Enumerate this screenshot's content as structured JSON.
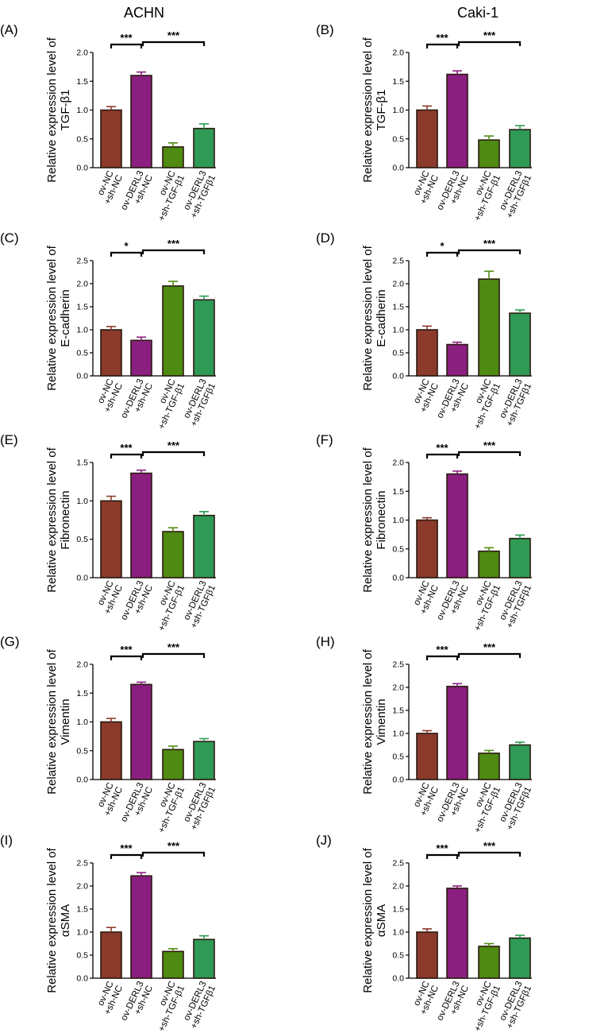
{
  "columns": [
    "ACHN",
    "Caki-1"
  ],
  "colors": {
    "ov_NC_sh_NC": "#8b3a2b",
    "ov_DERL3_sh_NC": "#8a1f7f",
    "ov_NC_sh_TGF": "#4f8a12",
    "ov_DERL3_sh_TGF": "#2e9a55",
    "edge": "#2a1a10"
  },
  "chart_data": [
    {
      "panel": "(A)",
      "type": "bar",
      "column": "ACHN",
      "ylabel": [
        "Relative expression level of",
        "TGF-β1"
      ],
      "ylim": [
        0,
        2.0
      ],
      "yticks": [
        0.0,
        0.5,
        1.0,
        1.5,
        2.0
      ],
      "categories": [
        [
          "ov-NC",
          "+sh-NC"
        ],
        [
          "ov-DERL3",
          "+sh-NC"
        ],
        [
          "ov-NC",
          "+sh-TGF-β1"
        ],
        [
          "ov-DERL3",
          "+sh-TGFβ1"
        ]
      ],
      "values": [
        1.0,
        1.6,
        0.36,
        0.68
      ],
      "errors": [
        0.06,
        0.06,
        0.07,
        0.08
      ],
      "significance": [
        {
          "from": 0,
          "to": 1,
          "label": "***"
        },
        {
          "from": 1,
          "to": 3,
          "label": "***"
        }
      ]
    },
    {
      "panel": "(B)",
      "type": "bar",
      "column": "Caki-1",
      "ylabel": [
        "Relative expression level of",
        "TGF-β1"
      ],
      "ylim": [
        0,
        2.0
      ],
      "yticks": [
        0.0,
        0.5,
        1.0,
        1.5,
        2.0
      ],
      "categories": [
        [
          "ov-NC",
          "+sh-NC"
        ],
        [
          "ov-DERL3",
          "+sh-NC"
        ],
        [
          "ov-NC",
          "+sh-TGF-β1"
        ],
        [
          "ov-DERL3",
          "+sh-TGFβ1"
        ]
      ],
      "values": [
        1.0,
        1.62,
        0.48,
        0.66
      ],
      "errors": [
        0.07,
        0.06,
        0.07,
        0.07
      ],
      "significance": [
        {
          "from": 0,
          "to": 1,
          "label": "***"
        },
        {
          "from": 1,
          "to": 3,
          "label": "***"
        }
      ]
    },
    {
      "panel": "(C)",
      "type": "bar",
      "column": "ACHN",
      "ylabel": [
        "Relative expression level of",
        "E-cadherin"
      ],
      "ylim": [
        0,
        2.5
      ],
      "yticks": [
        0.0,
        0.5,
        1.0,
        1.5,
        2.0,
        2.5
      ],
      "categories": [
        [
          "ov-NC",
          "+sh-NC"
        ],
        [
          "ov-DERL3",
          "+sh-NC"
        ],
        [
          "ov-NC",
          "+sh-TGF-β1"
        ],
        [
          "ov-DERL3",
          "+sh-TGFβ1"
        ]
      ],
      "values": [
        1.0,
        0.77,
        1.95,
        1.65
      ],
      "errors": [
        0.07,
        0.07,
        0.1,
        0.08
      ],
      "significance": [
        {
          "from": 0,
          "to": 1,
          "label": "*"
        },
        {
          "from": 1,
          "to": 3,
          "label": "***"
        }
      ]
    },
    {
      "panel": "(D)",
      "type": "bar",
      "column": "Caki-1",
      "ylabel": [
        "Relative expression level of",
        "E-cadherin"
      ],
      "ylim": [
        0,
        2.5
      ],
      "yticks": [
        0.0,
        0.5,
        1.0,
        1.5,
        2.0,
        2.5
      ],
      "categories": [
        [
          "ov-NC",
          "+sh-NC"
        ],
        [
          "ov-DERL3",
          "+sh-NC"
        ],
        [
          "ov-NC",
          "+sh-TGF-β1"
        ],
        [
          "ov-DERL3",
          "+sh-TGFβ1"
        ]
      ],
      "values": [
        1.0,
        0.68,
        2.1,
        1.36
      ],
      "errors": [
        0.08,
        0.05,
        0.17,
        0.07
      ],
      "significance": [
        {
          "from": 0,
          "to": 1,
          "label": "*"
        },
        {
          "from": 1,
          "to": 3,
          "label": "***"
        }
      ]
    },
    {
      "panel": "(E)",
      "type": "bar",
      "column": "ACHN",
      "ylabel": [
        "Relative expression level of",
        "Fibronectin"
      ],
      "ylim": [
        0,
        1.5
      ],
      "yticks": [
        0.0,
        0.5,
        1.0,
        1.5
      ],
      "categories": [
        [
          "ov-NC",
          "+sh-NC"
        ],
        [
          "ov-DERL3",
          "+sh-NC"
        ],
        [
          "ov-NC",
          "+sh-TGF-β1"
        ],
        [
          "ov-DERL3",
          "+sh-TGFβ1"
        ]
      ],
      "values": [
        1.0,
        1.36,
        0.6,
        0.81
      ],
      "errors": [
        0.06,
        0.04,
        0.05,
        0.05
      ],
      "significance": [
        {
          "from": 0,
          "to": 1,
          "label": "***"
        },
        {
          "from": 1,
          "to": 3,
          "label": "***"
        }
      ]
    },
    {
      "panel": "(F)",
      "type": "bar",
      "column": "Caki-1",
      "ylabel": [
        "Relative expression level of",
        "Fibronectin"
      ],
      "ylim": [
        0,
        2.0
      ],
      "yticks": [
        0.0,
        0.5,
        1.0,
        1.5,
        2.0
      ],
      "categories": [
        [
          "ov-NC",
          "+sh-NC"
        ],
        [
          "ov-DERL3",
          "+sh-NC"
        ],
        [
          "ov-NC",
          "+sh-TGF-β1"
        ],
        [
          "ov-DERL3",
          "+sh-TGFβ1"
        ]
      ],
      "values": [
        1.0,
        1.8,
        0.46,
        0.68
      ],
      "errors": [
        0.04,
        0.05,
        0.06,
        0.06
      ],
      "significance": [
        {
          "from": 0,
          "to": 1,
          "label": "***"
        },
        {
          "from": 1,
          "to": 3,
          "label": "***"
        }
      ]
    },
    {
      "panel": "(G)",
      "type": "bar",
      "column": "ACHN",
      "ylabel": [
        "Relative expression level of",
        "Vimentin"
      ],
      "ylim": [
        0,
        2.0
      ],
      "yticks": [
        0.0,
        0.5,
        1.0,
        1.5,
        2.0
      ],
      "categories": [
        [
          "ov-NC",
          "+sh-NC"
        ],
        [
          "ov-DERL3",
          "+sh-NC"
        ],
        [
          "ov-NC",
          "+sh-TGF-β1"
        ],
        [
          "ov-DERL3",
          "+sh-TGFβ1"
        ]
      ],
      "values": [
        1.0,
        1.65,
        0.52,
        0.66
      ],
      "errors": [
        0.06,
        0.04,
        0.06,
        0.05
      ],
      "significance": [
        {
          "from": 0,
          "to": 1,
          "label": "***"
        },
        {
          "from": 1,
          "to": 3,
          "label": "***"
        }
      ]
    },
    {
      "panel": "(H)",
      "type": "bar",
      "column": "Caki-1",
      "ylabel": [
        "Relative expression level of",
        "Vimentin"
      ],
      "ylim": [
        0,
        2.5
      ],
      "yticks": [
        0.0,
        0.5,
        1.0,
        1.5,
        2.0,
        2.5
      ],
      "categories": [
        [
          "ov-NC",
          "+sh-NC"
        ],
        [
          "ov-DERL3",
          "+sh-NC"
        ],
        [
          "ov-NC",
          "+sh-TGF-β1"
        ],
        [
          "ov-DERL3",
          "+sh-TGFβ1"
        ]
      ],
      "values": [
        1.0,
        2.02,
        0.57,
        0.75
      ],
      "errors": [
        0.06,
        0.06,
        0.06,
        0.06
      ],
      "significance": [
        {
          "from": 0,
          "to": 1,
          "label": "***"
        },
        {
          "from": 1,
          "to": 3,
          "label": "***"
        }
      ]
    },
    {
      "panel": "(I)",
      "type": "bar",
      "column": "ACHN",
      "ylabel": [
        "Relative expression level of",
        "αSMA"
      ],
      "ylim": [
        0,
        2.5
      ],
      "yticks": [
        0.0,
        0.5,
        1.0,
        1.5,
        2.0,
        2.5
      ],
      "categories": [
        [
          "ov-NC",
          "+sh-NC"
        ],
        [
          "ov-DERL3",
          "+sh-NC"
        ],
        [
          "ov-NC",
          "+sh-TGF-β1"
        ],
        [
          "ov-DERL3",
          "+sh-TGFβ1"
        ]
      ],
      "values": [
        1.0,
        2.22,
        0.58,
        0.84
      ],
      "errors": [
        0.1,
        0.07,
        0.06,
        0.08
      ],
      "significance": [
        {
          "from": 0,
          "to": 1,
          "label": "***"
        },
        {
          "from": 1,
          "to": 3,
          "label": "***"
        }
      ]
    },
    {
      "panel": "(J)",
      "type": "bar",
      "column": "Caki-1",
      "ylabel": [
        "Relative expression level of",
        "αSMA"
      ],
      "ylim": [
        0,
        2.5
      ],
      "yticks": [
        0.0,
        0.5,
        1.0,
        1.5,
        2.0,
        2.5
      ],
      "categories": [
        [
          "ov-NC",
          "+sh-NC"
        ],
        [
          "ov-DERL3",
          "+sh-NC"
        ],
        [
          "ov-NC",
          "+sh-TGF-β1"
        ],
        [
          "ov-DERL3",
          "+sh-TGFβ1"
        ]
      ],
      "values": [
        1.0,
        1.95,
        0.69,
        0.87
      ],
      "errors": [
        0.07,
        0.05,
        0.06,
        0.06
      ],
      "significance": [
        {
          "from": 0,
          "to": 1,
          "label": "***"
        },
        {
          "from": 1,
          "to": 3,
          "label": "***"
        }
      ]
    }
  ]
}
